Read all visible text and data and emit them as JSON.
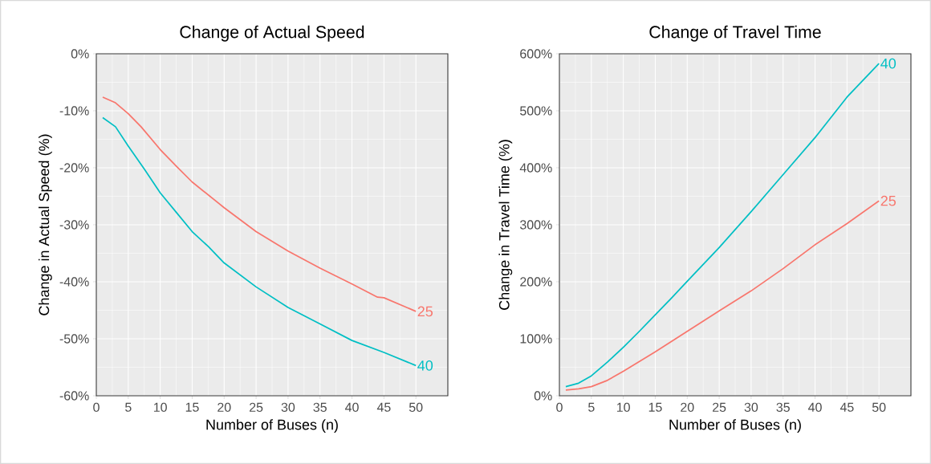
{
  "chart_data": [
    {
      "type": "line",
      "title": "Change of Actual Speed",
      "xlabel": "Number of Buses (n)",
      "ylabel": "Change in Actual Speed (%)",
      "xlim": [
        0,
        55
      ],
      "xticks": [
        0,
        5,
        10,
        15,
        20,
        25,
        30,
        35,
        40,
        45,
        50
      ],
      "ylim": [
        -60,
        0
      ],
      "yticks": [
        {
          "value": -60,
          "label": "-60%"
        },
        {
          "value": -50,
          "label": "-50%"
        },
        {
          "value": -40,
          "label": "-40%"
        },
        {
          "value": -30,
          "label": "-30%"
        },
        {
          "value": -20,
          "label": "-20%"
        },
        {
          "value": -10,
          "label": "-10%"
        },
        {
          "value": 0,
          "label": "0%"
        }
      ],
      "grid": true,
      "series": [
        {
          "name": "25",
          "color": "#f8766d",
          "x": [
            1,
            3,
            5,
            7,
            10,
            12.5,
            15,
            20,
            25,
            30,
            35,
            40,
            44,
            45,
            50
          ],
          "values": [
            -7.6,
            -8.6,
            -10.5,
            -12.8,
            -16.8,
            -19.7,
            -22.5,
            -27.0,
            -31.2,
            -34.6,
            -37.6,
            -40.4,
            -42.7,
            -42.8,
            -45.2
          ]
        },
        {
          "name": "40",
          "color": "#00bfc4",
          "x": [
            1,
            3,
            5,
            7.5,
            10,
            12.5,
            15,
            17.5,
            20,
            25,
            30,
            35,
            40,
            45,
            50
          ],
          "values": [
            -11.2,
            -12.8,
            -16.2,
            -20.2,
            -24.4,
            -27.8,
            -31.2,
            -33.8,
            -36.7,
            -40.9,
            -44.5,
            -47.4,
            -50.3,
            -52.4,
            -54.7
          ]
        }
      ]
    },
    {
      "type": "line",
      "title": "Change of Travel Time",
      "xlabel": "Number of Buses (n)",
      "ylabel": "Change in Travel Time (%)",
      "xlim": [
        0,
        55
      ],
      "xticks": [
        0,
        5,
        10,
        15,
        20,
        25,
        30,
        35,
        40,
        45,
        50
      ],
      "ylim": [
        0,
        600
      ],
      "yticks": [
        {
          "value": 0,
          "label": "0%"
        },
        {
          "value": 100,
          "label": "100%"
        },
        {
          "value": 200,
          "label": "200%"
        },
        {
          "value": 300,
          "label": "300%"
        },
        {
          "value": 400,
          "label": "400%"
        },
        {
          "value": 500,
          "label": "500%"
        },
        {
          "value": 600,
          "label": "600%"
        }
      ],
      "grid": true,
      "series": [
        {
          "name": "25",
          "color": "#f8766d",
          "x": [
            1,
            3,
            5,
            7.5,
            10,
            15,
            20,
            25,
            30,
            35,
            40,
            45,
            50
          ],
          "values": [
            10,
            12,
            16,
            27,
            43,
            77,
            113,
            149,
            184,
            223,
            265,
            302,
            342
          ]
        },
        {
          "name": "40",
          "color": "#00bfc4",
          "x": [
            1,
            3,
            5,
            7.5,
            10,
            12.5,
            15,
            17.5,
            20,
            25,
            30,
            35,
            40,
            45,
            50
          ],
          "values": [
            16,
            22,
            35,
            59,
            85,
            113,
            142,
            171,
            201,
            260,
            323,
            388,
            453,
            524,
            583
          ]
        }
      ]
    }
  ]
}
